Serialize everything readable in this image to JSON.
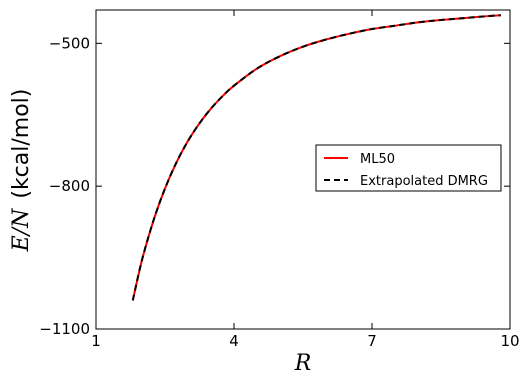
{
  "chart_data": {
    "type": "line",
    "title": "",
    "xlabel": "R",
    "ylabel_math": "E/N",
    "ylabel_unit": "(kcal/mol)",
    "xlim": [
      1,
      10
    ],
    "ylim": [
      -1100,
      -430
    ],
    "xticks": [
      1,
      4,
      7,
      10
    ],
    "yticks": [
      -500,
      -800,
      -1100
    ],
    "grid": false,
    "legend_position": "center-right",
    "series": [
      {
        "name": "ML50",
        "color": "#ff0000",
        "style": "solid",
        "x": [
          1.8,
          2.0,
          2.25,
          2.5,
          2.75,
          3.0,
          3.25,
          3.5,
          3.75,
          4.0,
          4.5,
          5.0,
          5.5,
          6.0,
          6.5,
          7.0,
          7.5,
          8.0,
          8.5,
          9.0,
          9.5,
          9.8
        ],
        "y": [
          -1040,
          -955,
          -872,
          -805,
          -750,
          -705,
          -668,
          -637,
          -611,
          -589,
          -553,
          -527,
          -507,
          -492,
          -480,
          -470,
          -463,
          -456,
          -451,
          -447,
          -443,
          -441
        ]
      },
      {
        "name": "Extrapolated DMRG",
        "color": "#000000",
        "style": "dashed",
        "x": [
          1.8,
          2.0,
          2.25,
          2.5,
          2.75,
          3.0,
          3.25,
          3.5,
          3.75,
          4.0,
          4.5,
          5.0,
          5.5,
          6.0,
          6.5,
          7.0,
          7.5,
          8.0,
          8.5,
          9.0,
          9.5,
          9.8
        ],
        "y": [
          -1040,
          -955,
          -872,
          -805,
          -750,
          -705,
          -668,
          -637,
          -611,
          -589,
          -553,
          -527,
          -507,
          -492,
          -480,
          -470,
          -463,
          -456,
          -451,
          -447,
          -443,
          -441
        ]
      }
    ]
  }
}
